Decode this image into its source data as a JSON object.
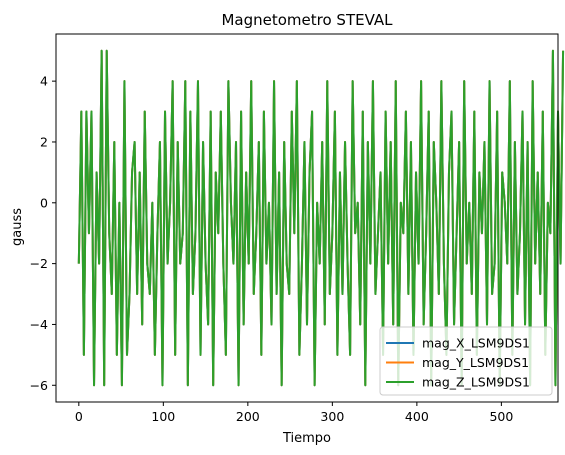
{
  "chart_data": {
    "type": "line",
    "title": "Magnetometro STEVAL",
    "xlabel": "Tiempo",
    "ylabel": "gauss",
    "xlim": [
      -27,
      567
    ],
    "ylim": [
      -6.55,
      5.55
    ],
    "xticks": [
      0,
      100,
      200,
      300,
      400,
      500
    ],
    "yticks": [
      -6,
      -4,
      -2,
      0,
      2,
      4
    ],
    "grid": false,
    "legend_position": "lower-right",
    "x_start": 0,
    "x_step": 3,
    "series": [
      {
        "name": "mag_X_LSM9DS1",
        "color": "#1f77b4",
        "values": [
          -2,
          3,
          -5,
          3,
          -1,
          3,
          -6,
          1,
          -2,
          5,
          -6,
          5,
          -1,
          -3,
          2,
          -5,
          0,
          -6,
          4,
          -5,
          -3,
          1,
          2,
          -3,
          1,
          -4,
          3,
          -2,
          -3,
          0,
          -5,
          -1,
          2,
          -6,
          3,
          -2,
          0,
          4,
          -5,
          2,
          -2,
          -1,
          4,
          -6,
          3,
          -3,
          -1,
          4,
          -5,
          2,
          -2,
          -4,
          3,
          -6,
          1,
          -1,
          3,
          -2,
          -5,
          4,
          0,
          -2,
          2,
          -6,
          3,
          -4,
          1,
          -2,
          4,
          -3,
          -1,
          2,
          -5,
          3,
          -2,
          0,
          -4,
          4,
          -3,
          1,
          -6,
          2,
          -2,
          -3,
          3,
          -1,
          4,
          -5,
          -2,
          2,
          -4,
          1,
          3,
          -6,
          0,
          -2,
          2,
          -4,
          4,
          -3,
          -1,
          3,
          -5,
          1,
          -3,
          2,
          -2,
          -5,
          4,
          -1,
          0,
          -4,
          3,
          -6,
          2,
          -2,
          4,
          -3,
          -1,
          1,
          -5,
          3,
          -2,
          2,
          -4,
          4,
          -6,
          0,
          -1,
          3,
          -3,
          2,
          -5,
          1,
          -2,
          4,
          -4,
          -1,
          3,
          -6,
          2,
          0,
          -3,
          4,
          -2,
          -5,
          1,
          3,
          -4,
          -1,
          2,
          -6,
          4,
          -2,
          0,
          -3,
          3,
          -5,
          1,
          -1,
          2,
          -4,
          4,
          -3,
          -2,
          3,
          -6,
          1,
          0,
          -2,
          4,
          -5,
          2,
          -3,
          -1,
          3,
          -4,
          2,
          -6,
          4,
          -2,
          1,
          -3,
          3,
          -5,
          0,
          -1,
          5,
          -6,
          3,
          -2,
          5
        ]
      },
      {
        "name": "mag_Y_LSM9DS1",
        "color": "#ff7f0e",
        "values": [
          -2,
          3,
          -5,
          3,
          -1,
          3,
          -6,
          1,
          -2,
          5,
          -6,
          5,
          -1,
          -3,
          2,
          -5,
          0,
          -6,
          4,
          -5,
          -3,
          1,
          2,
          -3,
          1,
          -4,
          3,
          -2,
          -3,
          0,
          -5,
          -1,
          2,
          -6,
          3,
          -2,
          0,
          4,
          -5,
          2,
          -2,
          -1,
          4,
          -6,
          3,
          -3,
          -1,
          4,
          -5,
          2,
          -2,
          -4,
          3,
          -6,
          1,
          -1,
          3,
          -2,
          -5,
          4,
          0,
          -2,
          2,
          -6,
          3,
          -4,
          1,
          -2,
          4,
          -3,
          -1,
          2,
          -5,
          3,
          -2,
          0,
          -4,
          4,
          -3,
          1,
          -6,
          2,
          -2,
          -3,
          3,
          -1,
          4,
          -5,
          -2,
          2,
          -4,
          1,
          3,
          -6,
          0,
          -2,
          2,
          -4,
          4,
          -3,
          -1,
          3,
          -5,
          1,
          -3,
          2,
          -2,
          -5,
          4,
          -1,
          0,
          -4,
          3,
          -6,
          2,
          -2,
          4,
          -3,
          -1,
          1,
          -5,
          3,
          -2,
          2,
          -4,
          4,
          -6,
          0,
          -1,
          3,
          -3,
          2,
          -5,
          1,
          -2,
          4,
          -4,
          -1,
          3,
          -6,
          2,
          0,
          -3,
          4,
          -2,
          -5,
          1,
          3,
          -4,
          -1,
          2,
          -6,
          4,
          -2,
          0,
          -3,
          3,
          -5,
          1,
          -1,
          2,
          -4,
          4,
          -3,
          -2,
          3,
          -6,
          1,
          0,
          -2,
          4,
          -5,
          2,
          -3,
          -1,
          3,
          -4,
          2,
          -6,
          4,
          -2,
          1,
          -3,
          3,
          -5,
          0,
          -1,
          5,
          -6,
          3,
          -2,
          5
        ]
      },
      {
        "name": "mag_Z_LSM9DS1",
        "color": "#2ca02c",
        "values": [
          -2,
          3,
          -5,
          3,
          -1,
          3,
          -6,
          1,
          -2,
          5,
          -6,
          5,
          -1,
          -3,
          2,
          -5,
          0,
          -6,
          4,
          -5,
          -3,
          1,
          2,
          -3,
          1,
          -4,
          3,
          -2,
          -3,
          0,
          -5,
          -1,
          2,
          -6,
          3,
          -2,
          0,
          4,
          -5,
          2,
          -2,
          -1,
          4,
          -6,
          3,
          -3,
          -1,
          4,
          -5,
          2,
          -2,
          -4,
          3,
          -6,
          1,
          -1,
          3,
          -2,
          -5,
          4,
          0,
          -2,
          2,
          -6,
          3,
          -4,
          1,
          -2,
          4,
          -3,
          -1,
          2,
          -5,
          3,
          -2,
          0,
          -4,
          4,
          -3,
          1,
          -6,
          2,
          -2,
          -3,
          3,
          -1,
          4,
          -5,
          -2,
          2,
          -4,
          1,
          3,
          -6,
          0,
          -2,
          2,
          -4,
          4,
          -3,
          -1,
          3,
          -5,
          1,
          -3,
          2,
          -2,
          -5,
          4,
          -1,
          0,
          -4,
          3,
          -6,
          2,
          -2,
          4,
          -3,
          -1,
          1,
          -5,
          3,
          -2,
          2,
          -4,
          4,
          -6,
          0,
          -1,
          3,
          -3,
          2,
          -5,
          1,
          -2,
          4,
          -4,
          -1,
          3,
          -6,
          2,
          0,
          -3,
          4,
          -2,
          -5,
          1,
          3,
          -4,
          -1,
          2,
          -6,
          4,
          -2,
          0,
          -3,
          3,
          -5,
          1,
          -1,
          2,
          -4,
          4,
          -3,
          -2,
          3,
          -6,
          1,
          0,
          -2,
          4,
          -5,
          2,
          -3,
          -1,
          3,
          -4,
          2,
          -6,
          4,
          -2,
          1,
          -3,
          3,
          -5,
          0,
          -1,
          5,
          -6,
          3,
          -2,
          5
        ]
      }
    ]
  }
}
